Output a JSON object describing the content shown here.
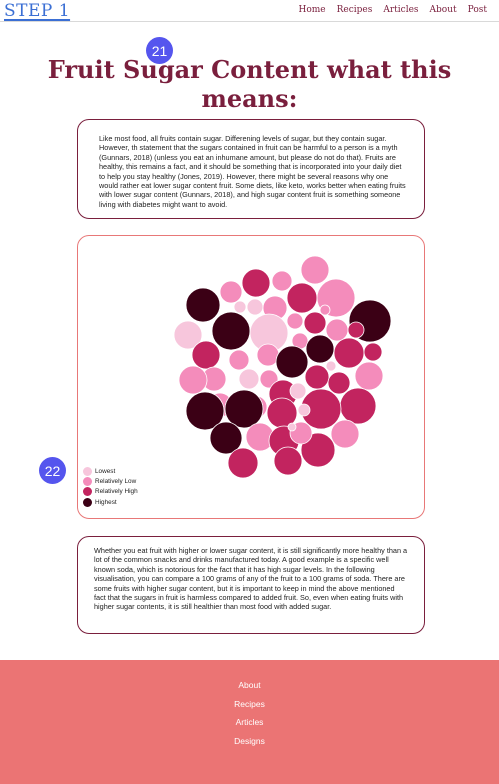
{
  "nav": {
    "logo": "STEP 1",
    "links": [
      "Home",
      "Recipes",
      "Articles",
      "About",
      "Post"
    ]
  },
  "badges": [
    "21",
    "22"
  ],
  "title": "Fruit Sugar Content what this means:",
  "intro_text": "Like most food, all fruits contain sugar. Differening levels of sugar, but they contain sugar. However, th statement that the sugars contained in fruit can be harmful to a person is a myth (Gunnars, 2018) (unless you eat an inhumane amount, but please do not do that). Fruits are healthy, this remains a fact, and it should be something that is incorporated into your daily diet to help you stay healthy (Jones, 2019). However, there might be several reasons why one would rather eat lower sugar content fruit. Some diets, like keto, works better when eating fruits with lower sugar content (Gunnars, 2018), and high sugar content fruit is something someone living with diabetes might want to avoid.",
  "outro_text": "Whether you eat fruit with higher or lower sugar content, it is still significantly more healthy than a lot of the common snacks and drinks manufactured today. A good example is a specific well known soda, which is notorious for the fact that it has high sugar levels. In the following visualisation, you can compare a 100 grams of any of the fruit to a 100 grams of soda. There are some fruits with higher sugar content, but it is important to keep in mind the above mentioned fact that the sugars in fruit is harmless compared to added fruit. So, even when eating fruits with higher sugar contents, it is still healthier than most food with added sugar.",
  "chart_data": {
    "type": "bubble",
    "legend": [
      {
        "label": "Lowest",
        "color": "#f7c6dc"
      },
      {
        "label": "Relatively Low",
        "color": "#f48cbb"
      },
      {
        "label": "Relatively High",
        "color": "#c2245f"
      },
      {
        "label": "Highest",
        "color": "#3b0015"
      }
    ],
    "bubble_levels": [
      1,
      2,
      1,
      1,
      2,
      3,
      1,
      0,
      1,
      0,
      1,
      3,
      3,
      0,
      1,
      2,
      1,
      0,
      1,
      2,
      2,
      1,
      1,
      3,
      3,
      2,
      2,
      1,
      0,
      1,
      2,
      0,
      1,
      2,
      1,
      2,
      0,
      1,
      2,
      1,
      3,
      3,
      2,
      2,
      0,
      3,
      1,
      2,
      2,
      1,
      1,
      0,
      2,
      2,
      1,
      3,
      1,
      1,
      0,
      0,
      2
    ]
  },
  "footer": {
    "links": [
      "About",
      "Recipes",
      "Articles",
      "Designs"
    ]
  }
}
